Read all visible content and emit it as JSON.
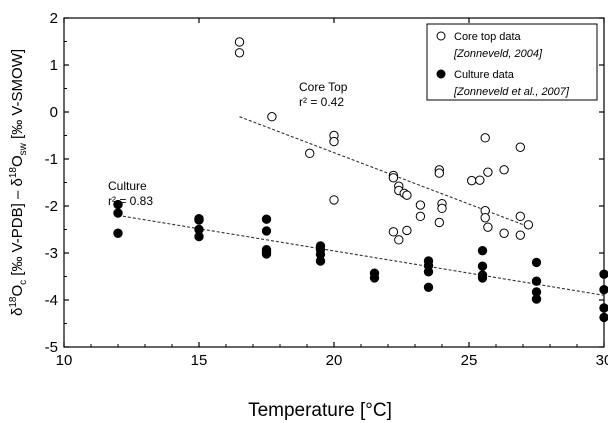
{
  "chart_data": {
    "type": "scatter",
    "xlabel": "Temperature [°C]",
    "ylabel_parts": [
      "δ",
      "18",
      "O",
      "c",
      " [‰ V-PDB] – δ",
      "18",
      "O",
      "sw",
      " [‰ V-SMOW]"
    ],
    "xlim": [
      10,
      30
    ],
    "ylim": [
      -5,
      2
    ],
    "xticks": [
      10,
      15,
      20,
      25,
      30
    ],
    "yticks": [
      -5,
      -4,
      -3,
      -2,
      -1,
      0,
      1,
      2
    ],
    "legend": {
      "position": "top-right",
      "entries": [
        {
          "label": "Core top data",
          "ref": "[Zonneveld, 2004]",
          "marker": "open-circle"
        },
        {
          "label": "Culture data",
          "ref": "[Zonneveld et al., 2007]",
          "marker": "filled-circle"
        }
      ]
    },
    "annotations": [
      {
        "line1": "Core Top",
        "line2": "r² = 0.42"
      },
      {
        "line1": "Culture",
        "line2": "r² = 0.83"
      }
    ],
    "series": [
      {
        "name": "Core top data",
        "marker": "open",
        "points": [
          [
            16.5,
            1.49
          ],
          [
            16.5,
            1.26
          ],
          [
            17.7,
            -0.1
          ],
          [
            19.1,
            -0.88
          ],
          [
            20.0,
            -0.5
          ],
          [
            20.0,
            -0.63
          ],
          [
            20.0,
            -1.87
          ],
          [
            22.2,
            -1.35
          ],
          [
            22.2,
            -1.4
          ],
          [
            22.2,
            -2.55
          ],
          [
            22.4,
            -1.58
          ],
          [
            22.4,
            -1.67
          ],
          [
            22.4,
            -2.72
          ],
          [
            22.6,
            -1.73
          ],
          [
            22.7,
            -2.52
          ],
          [
            22.7,
            -1.77
          ],
          [
            23.2,
            -1.98
          ],
          [
            23.2,
            -2.22
          ],
          [
            23.9,
            -1.23
          ],
          [
            23.9,
            -1.3
          ],
          [
            23.9,
            -2.35
          ],
          [
            24.0,
            -1.95
          ],
          [
            24.0,
            -2.05
          ],
          [
            25.1,
            -1.46
          ],
          [
            25.4,
            -1.45
          ],
          [
            25.6,
            -0.55
          ],
          [
            25.6,
            -2.1
          ],
          [
            25.6,
            -2.25
          ],
          [
            25.7,
            -1.28
          ],
          [
            25.7,
            -2.45
          ],
          [
            26.3,
            -1.23
          ],
          [
            26.3,
            -2.58
          ],
          [
            26.9,
            -0.75
          ],
          [
            26.9,
            -2.22
          ],
          [
            26.9,
            -2.62
          ],
          [
            27.2,
            -2.4
          ]
        ]
      },
      {
        "name": "Culture data",
        "marker": "filled",
        "points": [
          [
            12.0,
            -1.97
          ],
          [
            12.0,
            -2.15
          ],
          [
            12.0,
            -2.58
          ],
          [
            15.0,
            -2.27
          ],
          [
            15.0,
            -2.3
          ],
          [
            15.0,
            -2.5
          ],
          [
            15.0,
            -2.65
          ],
          [
            17.5,
            -2.28
          ],
          [
            17.5,
            -2.53
          ],
          [
            17.5,
            -2.93
          ],
          [
            17.5,
            -2.98
          ],
          [
            17.5,
            -3.02
          ],
          [
            19.5,
            -2.85
          ],
          [
            19.5,
            -2.93
          ],
          [
            19.5,
            -3.03
          ],
          [
            19.5,
            -3.17
          ],
          [
            21.5,
            -3.43
          ],
          [
            21.5,
            -3.53
          ],
          [
            23.5,
            -3.17
          ],
          [
            23.5,
            -3.27
          ],
          [
            23.5,
            -3.4
          ],
          [
            23.5,
            -3.73
          ],
          [
            25.5,
            -2.95
          ],
          [
            25.5,
            -3.28
          ],
          [
            25.5,
            -3.47
          ],
          [
            25.5,
            -3.53
          ],
          [
            27.5,
            -3.2
          ],
          [
            27.5,
            -3.6
          ],
          [
            27.5,
            -3.83
          ],
          [
            27.5,
            -3.98
          ],
          [
            30.0,
            -3.45
          ],
          [
            30.0,
            -3.78
          ],
          [
            30.0,
            -4.17
          ],
          [
            30.0,
            -4.37
          ]
        ]
      }
    ],
    "fit_lines": [
      {
        "for": "Core top data",
        "x": [
          16.5,
          27.2
        ],
        "y": [
          -0.1,
          -2.44
        ]
      },
      {
        "for": "Culture data",
        "x": [
          12.0,
          30.0
        ],
        "y": [
          -2.2,
          -3.9
        ]
      }
    ]
  }
}
